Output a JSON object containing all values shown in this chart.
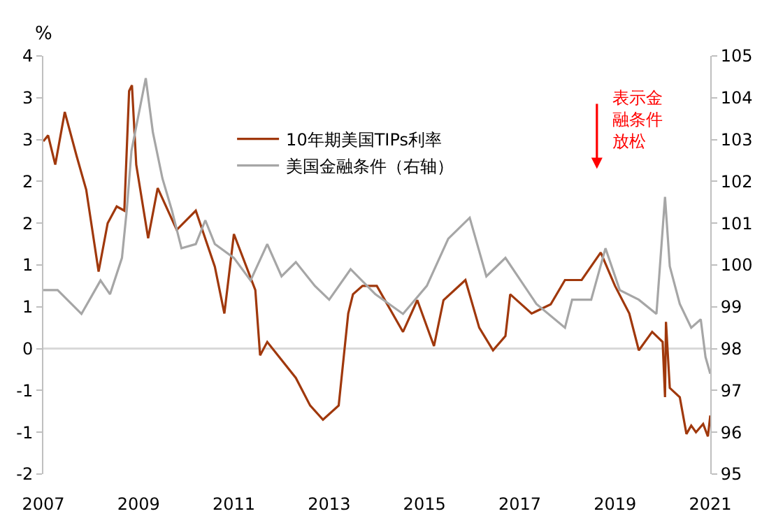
{
  "chart_data": {
    "type": "line",
    "ylabel": "%",
    "x": [
      2007.0,
      2007.1,
      2007.25,
      2007.45,
      2007.7,
      2007.9,
      2008.16,
      2008.35,
      2008.54,
      2008.7,
      2008.8,
      2008.86,
      2008.95,
      2009.2,
      2009.4,
      2009.8,
      2010.2,
      2010.6,
      2010.8,
      2011.0,
      2011.45,
      2011.55,
      2011.7,
      2012.3,
      2012.6,
      2012.87,
      2013.2,
      2013.4,
      2013.5,
      2013.7,
      2014.0,
      2014.55,
      2014.85,
      2015.2,
      2015.4,
      2015.86,
      2016.15,
      2016.44,
      2016.7,
      2016.8,
      2017.25,
      2017.65,
      2017.95,
      2018.3,
      2018.7,
      2019.0,
      2019.3,
      2019.5,
      2019.78,
      2020.0,
      2020.05,
      2020.07,
      2020.15,
      2020.36,
      2020.5,
      2020.6,
      2020.7,
      2020.85,
      2020.95,
      2021.0
    ],
    "series": [
      {
        "name": "10年期美国TIPs利率",
        "color": "#a0380c",
        "values": [
          2.48,
          2.55,
          2.2,
          2.83,
          2.3,
          1.9,
          0.92,
          1.5,
          1.7,
          1.65,
          3.08,
          3.15,
          2.2,
          1.32,
          1.92,
          1.42,
          1.65,
          0.98,
          0.42,
          1.37,
          0.7,
          -0.08,
          0.08,
          -0.35,
          -0.68,
          -0.85,
          -0.68,
          0.42,
          0.65,
          0.75,
          0.75,
          0.2,
          0.58,
          0.03,
          0.58,
          0.82,
          0.25,
          -0.02,
          0.15,
          0.65,
          0.42,
          0.53,
          0.82,
          0.82,
          1.15,
          0.75,
          0.42,
          -0.02,
          0.2,
          0.08,
          -0.58,
          0.32,
          -0.47,
          -0.58,
          -1.02,
          -0.92,
          -1.0,
          -0.9,
          -1.05,
          -0.8
        ]
      },
      {
        "name": "美国金融条件（右轴）",
        "color": "#a6a6a6",
        "axis": "y2",
        "x": [
          2007.0,
          2007.3,
          2007.8,
          2008.2,
          2008.4,
          2008.65,
          2008.75,
          2008.85,
          2009.15,
          2009.3,
          2009.5,
          2009.7,
          2009.9,
          2010.2,
          2010.4,
          2010.6,
          2011.0,
          2011.35,
          2011.7,
          2012.0,
          2012.3,
          2012.7,
          2013.0,
          2013.45,
          2013.97,
          2014.55,
          2015.05,
          2015.5,
          2015.95,
          2016.3,
          2016.7,
          2017.35,
          2017.95,
          2018.1,
          2018.5,
          2018.8,
          2019.1,
          2019.5,
          2019.87,
          2020.05,
          2020.15,
          2020.36,
          2020.6,
          2020.8,
          2020.9,
          2021.0
        ],
        "values": [
          99.4,
          99.4,
          98.83,
          99.63,
          99.3,
          100.17,
          101.3,
          102.73,
          104.47,
          103.17,
          102.07,
          101.3,
          100.4,
          100.5,
          101.07,
          100.5,
          100.17,
          99.63,
          100.5,
          99.73,
          100.07,
          99.5,
          99.17,
          99.9,
          99.3,
          98.83,
          99.5,
          100.63,
          101.13,
          99.73,
          100.17,
          99.07,
          98.5,
          99.17,
          99.17,
          100.4,
          99.4,
          99.17,
          98.83,
          101.63,
          99.97,
          99.07,
          98.5,
          98.7,
          97.8,
          97.4
        ]
      }
    ],
    "xlim": [
      2007,
      2021
    ],
    "xticks": [
      2007,
      2009,
      2011,
      2013,
      2015,
      2017,
      2019,
      2021
    ],
    "ylim": [
      -1.5,
      3.5
    ],
    "yticks": [
      {
        "value": -1.5,
        "label": "-2"
      },
      {
        "value": -1,
        "label": "-1"
      },
      {
        "value": -0.5,
        "label": "-1"
      },
      0,
      {
        "value": 0.5,
        "label": "1"
      },
      1,
      {
        "value": 1.5,
        "label": "2"
      },
      2,
      {
        "value": 2.5,
        "label": "3"
      },
      3,
      {
        "value": 3.5,
        "label": "4"
      }
    ],
    "y2lim": [
      95,
      105
    ],
    "y2ticks": [
      95,
      96,
      97,
      98,
      99,
      100,
      101,
      102,
      103,
      104,
      105
    ],
    "ref_lines": [
      {
        "axis": "y",
        "value": 0,
        "color": "#d9d9d9"
      }
    ],
    "annotations": [
      "表示金融条件放松"
    ],
    "legend": "top",
    "grid": false,
    "line_style": "solid",
    "marker": "none"
  }
}
